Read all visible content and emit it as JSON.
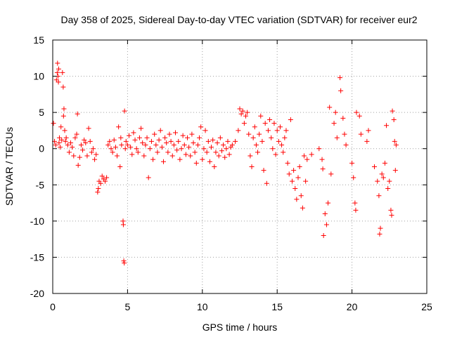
{
  "chart_data": {
    "type": "scatter",
    "title": "Day 358 of 2025, Sidereal Day-to-day VTEC variation (SDTVAR) for receiver eur2",
    "xlabel": "GPS time / hours",
    "ylabel": "SDTVAR / TECUs",
    "xlim": [
      0,
      25
    ],
    "ylim": [
      -20,
      15
    ],
    "xticks": [
      0,
      5,
      10,
      15,
      20,
      25
    ],
    "yticks": [
      -20,
      -15,
      -10,
      -5,
      0,
      5,
      10,
      15
    ],
    "grid": true,
    "marker": "+",
    "color": "#ff0000",
    "series": [
      {
        "name": "SDTVAR",
        "points": [
          [
            0.05,
            3.5
          ],
          [
            0.12,
            1.0
          ],
          [
            0.2,
            0.5
          ],
          [
            0.25,
            9.5
          ],
          [
            0.3,
            10.5
          ],
          [
            0.32,
            11.8
          ],
          [
            0.35,
            10.0
          ],
          [
            0.38,
            9.2
          ],
          [
            0.4,
            11.0
          ],
          [
            0.42,
            0.8
          ],
          [
            0.45,
            1.5
          ],
          [
            0.5,
            0.2
          ],
          [
            0.55,
            3.0
          ],
          [
            0.6,
            1.2
          ],
          [
            0.65,
            10.5
          ],
          [
            0.7,
            8.5
          ],
          [
            0.72,
            4.5
          ],
          [
            0.75,
            5.5
          ],
          [
            0.8,
            2.5
          ],
          [
            0.85,
            1.0
          ],
          [
            0.9,
            1.5
          ],
          [
            1.0,
            0.5
          ],
          [
            1.1,
            -0.5
          ],
          [
            1.2,
            0.8
          ],
          [
            1.3,
            0.2
          ],
          [
            1.4,
            -1.0
          ],
          [
            1.5,
            1.5
          ],
          [
            1.6,
            2.0
          ],
          [
            1.65,
            4.8
          ],
          [
            1.7,
            -2.3
          ],
          [
            1.8,
            -1.2
          ],
          [
            1.9,
            0.5
          ],
          [
            2.0,
            -0.2
          ],
          [
            2.1,
            1.2
          ],
          [
            2.2,
            0.8
          ],
          [
            2.3,
            -1.0
          ],
          [
            2.4,
            2.8
          ],
          [
            2.5,
            1.0
          ],
          [
            2.6,
            -0.5
          ],
          [
            2.7,
            0.0
          ],
          [
            2.8,
            -1.5
          ],
          [
            2.9,
            -0.8
          ],
          [
            3.0,
            -6.0
          ],
          [
            3.05,
            -5.5
          ],
          [
            3.1,
            -4.5
          ],
          [
            3.2,
            -4.8
          ],
          [
            3.3,
            -3.8
          ],
          [
            3.4,
            -4.2
          ],
          [
            3.5,
            -4.5
          ],
          [
            3.6,
            -4.0
          ],
          [
            3.7,
            0.5
          ],
          [
            3.8,
            1.0
          ],
          [
            3.9,
            0.0
          ],
          [
            4.0,
            -0.5
          ],
          [
            4.1,
            1.2
          ],
          [
            4.2,
            0.2
          ],
          [
            4.3,
            -1.0
          ],
          [
            4.4,
            3.0
          ],
          [
            4.5,
            -2.5
          ],
          [
            4.55,
            1.5
          ],
          [
            4.6,
            0.5
          ],
          [
            4.7,
            -10.0
          ],
          [
            4.72,
            -10.5
          ],
          [
            4.75,
            -15.5
          ],
          [
            4.78,
            -15.8
          ],
          [
            4.8,
            5.2
          ],
          [
            4.85,
            0.0
          ],
          [
            4.9,
            1.0
          ],
          [
            5.0,
            0.5
          ],
          [
            5.1,
            1.8
          ],
          [
            5.2,
            0.2
          ],
          [
            5.3,
            -0.8
          ],
          [
            5.4,
            2.2
          ],
          [
            5.5,
            1.2
          ],
          [
            5.6,
            0.0
          ],
          [
            5.7,
            -0.5
          ],
          [
            5.8,
            1.5
          ],
          [
            5.9,
            2.8
          ],
          [
            6.0,
            0.8
          ],
          [
            6.1,
            -1.0
          ],
          [
            6.2,
            0.5
          ],
          [
            6.3,
            1.5
          ],
          [
            6.4,
            -4.0
          ],
          [
            6.5,
            0.0
          ],
          [
            6.6,
            1.0
          ],
          [
            6.7,
            -1.5
          ],
          [
            6.8,
            2.0
          ],
          [
            6.9,
            0.5
          ],
          [
            7.0,
            -0.5
          ],
          [
            7.1,
            1.2
          ],
          [
            7.2,
            2.5
          ],
          [
            7.3,
            0.2
          ],
          [
            7.4,
            -1.8
          ],
          [
            7.5,
            1.5
          ],
          [
            7.6,
            0.8
          ],
          [
            7.7,
            -0.5
          ],
          [
            7.8,
            2.0
          ],
          [
            7.9,
            1.0
          ],
          [
            8.0,
            -1.0
          ],
          [
            8.1,
            0.5
          ],
          [
            8.2,
            2.2
          ],
          [
            8.3,
            -0.2
          ],
          [
            8.4,
            1.0
          ],
          [
            8.5,
            -1.5
          ],
          [
            8.6,
            0.0
          ],
          [
            8.7,
            1.8
          ],
          [
            8.8,
            0.5
          ],
          [
            8.9,
            -0.8
          ],
          [
            9.0,
            1.5
          ],
          [
            9.1,
            0.2
          ],
          [
            9.2,
            -1.0
          ],
          [
            9.3,
            2.0
          ],
          [
            9.4,
            0.8
          ],
          [
            9.5,
            -0.5
          ],
          [
            9.6,
            -2.0
          ],
          [
            9.7,
            0.5
          ],
          [
            9.8,
            1.5
          ],
          [
            9.9,
            3.0
          ],
          [
            10.0,
            -1.5
          ],
          [
            10.1,
            0.0
          ],
          [
            10.2,
            2.5
          ],
          [
            10.3,
            -0.5
          ],
          [
            10.4,
            1.0
          ],
          [
            10.5,
            -1.8
          ],
          [
            10.6,
            0.2
          ],
          [
            10.7,
            1.2
          ],
          [
            10.8,
            -2.5
          ],
          [
            10.9,
            -0.5
          ],
          [
            11.0,
            0.8
          ],
          [
            11.1,
            -1.0
          ],
          [
            11.2,
            1.5
          ],
          [
            11.3,
            -0.3
          ],
          [
            11.4,
            0.5
          ],
          [
            11.5,
            -1.2
          ],
          [
            11.6,
            0.0
          ],
          [
            11.7,
            1.0
          ],
          [
            11.8,
            -0.8
          ],
          [
            11.9,
            0.2
          ],
          [
            12.0,
            0.5
          ],
          [
            12.2,
            1.0
          ],
          [
            12.4,
            2.5
          ],
          [
            12.5,
            5.5
          ],
          [
            12.6,
            4.8
          ],
          [
            12.7,
            5.2
          ],
          [
            12.8,
            3.5
          ],
          [
            12.9,
            4.5
          ],
          [
            13.0,
            5.0
          ],
          [
            13.1,
            2.0
          ],
          [
            13.2,
            -1.0
          ],
          [
            13.3,
            -2.5
          ],
          [
            13.4,
            1.5
          ],
          [
            13.5,
            3.0
          ],
          [
            13.6,
            0.5
          ],
          [
            13.7,
            -0.5
          ],
          [
            13.8,
            2.0
          ],
          [
            13.9,
            4.5
          ],
          [
            14.0,
            1.0
          ],
          [
            14.1,
            -3.0
          ],
          [
            14.2,
            3.5
          ],
          [
            14.3,
            -4.8
          ],
          [
            14.4,
            2.5
          ],
          [
            14.5,
            4.0
          ],
          [
            14.6,
            1.5
          ],
          [
            14.7,
            0.0
          ],
          [
            14.8,
            3.5
          ],
          [
            14.9,
            -0.8
          ],
          [
            15.0,
            2.5
          ],
          [
            15.1,
            1.0
          ],
          [
            15.2,
            3.0
          ],
          [
            15.3,
            0.5
          ],
          [
            15.4,
            -0.5
          ],
          [
            15.5,
            1.5
          ],
          [
            15.6,
            2.5
          ],
          [
            15.7,
            -2.0
          ],
          [
            15.8,
            -3.5
          ],
          [
            15.9,
            4.0
          ],
          [
            16.0,
            -4.5
          ],
          [
            16.1,
            -3.0
          ],
          [
            16.2,
            -5.5
          ],
          [
            16.3,
            -7.0
          ],
          [
            16.4,
            -4.0
          ],
          [
            16.5,
            -2.5
          ],
          [
            16.6,
            -6.5
          ],
          [
            16.7,
            -8.2
          ],
          [
            16.8,
            -1.0
          ],
          [
            16.9,
            -4.5
          ],
          [
            17.0,
            -1.5
          ],
          [
            17.3,
            -0.8
          ],
          [
            17.8,
            0.0
          ],
          [
            18.0,
            -1.5
          ],
          [
            18.05,
            -2.8
          ],
          [
            18.1,
            -12.0
          ],
          [
            18.2,
            -9.0
          ],
          [
            18.3,
            -10.5
          ],
          [
            18.4,
            -7.5
          ],
          [
            18.5,
            5.7
          ],
          [
            18.6,
            -3.5
          ],
          [
            18.8,
            3.5
          ],
          [
            18.9,
            5.0
          ],
          [
            19.0,
            1.5
          ],
          [
            19.2,
            9.8
          ],
          [
            19.25,
            8.0
          ],
          [
            19.4,
            4.2
          ],
          [
            19.5,
            2.0
          ],
          [
            19.6,
            0.5
          ],
          [
            20.0,
            -2.0
          ],
          [
            20.1,
            -4.0
          ],
          [
            20.2,
            -7.5
          ],
          [
            20.25,
            -8.5
          ],
          [
            20.3,
            5.0
          ],
          [
            20.5,
            4.5
          ],
          [
            20.6,
            2.0
          ],
          [
            21.0,
            1.0
          ],
          [
            21.1,
            2.5
          ],
          [
            21.5,
            -2.5
          ],
          [
            21.7,
            -4.5
          ],
          [
            21.8,
            -6.5
          ],
          [
            21.85,
            -11.8
          ],
          [
            21.9,
            -11.0
          ],
          [
            22.0,
            -3.5
          ],
          [
            22.1,
            -4.0
          ],
          [
            22.2,
            -2.0
          ],
          [
            22.3,
            3.2
          ],
          [
            22.4,
            -5.5
          ],
          [
            22.5,
            -4.5
          ],
          [
            22.6,
            -8.5
          ],
          [
            22.65,
            -9.2
          ],
          [
            22.7,
            5.2
          ],
          [
            22.8,
            4.0
          ],
          [
            22.85,
            1.0
          ],
          [
            22.9,
            -3.0
          ],
          [
            22.95,
            0.5
          ]
        ]
      }
    ]
  }
}
